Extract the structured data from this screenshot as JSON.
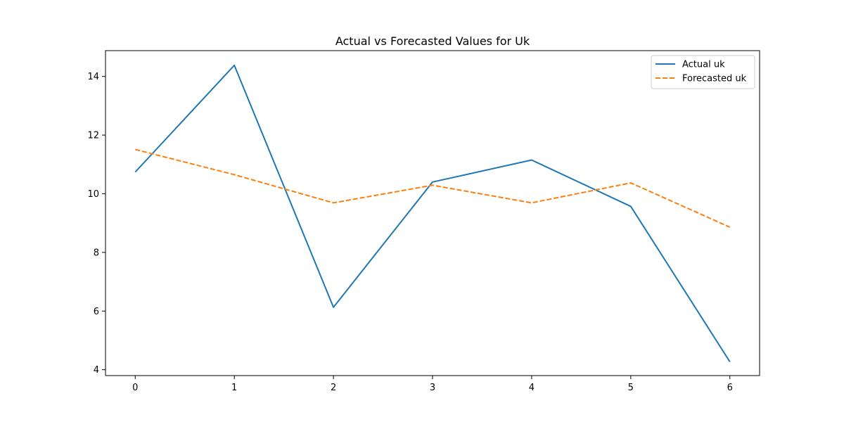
{
  "chart_data": {
    "type": "line",
    "title": "Actual vs Forecasted Values for Uk",
    "xlabel": "",
    "ylabel": "",
    "x": [
      0,
      1,
      2,
      3,
      4,
      5,
      6
    ],
    "xlim": [
      -0.3,
      6.3
    ],
    "ylim": [
      3.8,
      14.88
    ],
    "xticks": [
      0,
      1,
      2,
      3,
      4,
      5,
      6
    ],
    "yticks": [
      4,
      6,
      8,
      10,
      12,
      14
    ],
    "grid": false,
    "legend_position": "top-right",
    "series": [
      {
        "name": "Actual uk",
        "color": "#1f77b4",
        "style": "solid",
        "values": [
          10.74,
          14.38,
          6.13,
          10.4,
          11.15,
          9.57,
          4.27
        ]
      },
      {
        "name": "Forecasted uk",
        "color": "#ff7f0e",
        "style": "dashed",
        "values": [
          11.51,
          10.65,
          9.69,
          10.29,
          9.69,
          10.37,
          8.86
        ]
      }
    ]
  }
}
